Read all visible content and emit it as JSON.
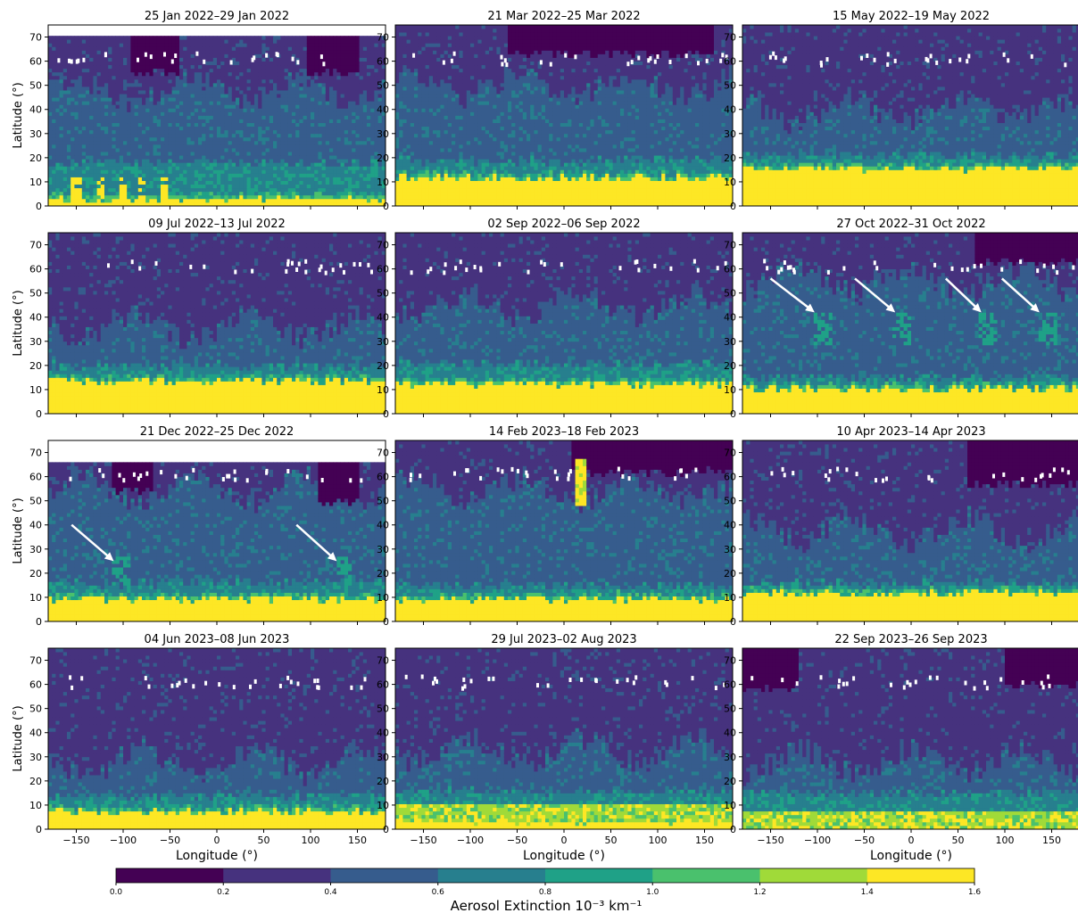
{
  "figure": {
    "colorbar_label": "Aerosol Extinction 10⁻³ km⁻¹",
    "x_label": "Longitude (°)",
    "y_label": "Latitude (°)"
  },
  "chart_data": [
    {
      "type": "heatmap",
      "title": "25 Jan 2022–29 Jan 2022",
      "xlim": [
        -180,
        180
      ],
      "ylim": [
        0,
        75
      ],
      "yticks": [
        0,
        10,
        20,
        30,
        40,
        50,
        60,
        70
      ],
      "data_top": 70,
      "features": {
        "yellow_base": [
          2,
          4
        ],
        "teal_top": 18,
        "mid_top": 48,
        "dark_patches": [
          {
            "x0": -90,
            "x1": -40,
            "y0": 55
          },
          {
            "x0": 95,
            "x1": 150,
            "y0": 55
          }
        ],
        "tropical_plumes": [
          -150,
          -125,
          -100,
          -80,
          -55
        ]
      }
    },
    {
      "type": "heatmap",
      "title": "21 Mar 2022–25 Mar 2022",
      "xlim": [
        -180,
        180
      ],
      "ylim": [
        0,
        75
      ],
      "yticks": [
        0,
        10,
        20,
        30,
        40,
        50,
        60,
        70
      ],
      "data_top": 75,
      "features": {
        "yellow_base": [
          10,
          13
        ],
        "teal_top": 19,
        "mid_top": 50,
        "dark_patches": [
          {
            "x0": -60,
            "x1": 160,
            "y0": 63
          }
        ]
      }
    },
    {
      "type": "heatmap",
      "title": "15 May 2022–19 May 2022",
      "xlim": [
        -180,
        180
      ],
      "ylim": [
        0,
        75
      ],
      "yticks": [
        0,
        10,
        20,
        30,
        40,
        50,
        60,
        70
      ],
      "data_top": 75,
      "features": {
        "yellow_base": [
          14,
          17
        ],
        "teal_top": 21,
        "mid_top": 40,
        "dark_patches": []
      }
    },
    {
      "type": "heatmap",
      "title": "09 Jul 2022–13 Jul 2022",
      "xlim": [
        -180,
        180
      ],
      "ylim": [
        0,
        75
      ],
      "yticks": [
        0,
        10,
        20,
        30,
        40,
        50,
        60,
        70
      ],
      "data_top": 75,
      "features": {
        "yellow_base": [
          12,
          15
        ],
        "teal_top": 20,
        "mid_top": 36,
        "dark_patches": []
      }
    },
    {
      "type": "heatmap",
      "title": "02 Sep 2022–06 Sep 2022",
      "xlim": [
        -180,
        180
      ],
      "ylim": [
        0,
        75
      ],
      "yticks": [
        0,
        10,
        20,
        30,
        40,
        50,
        60,
        70
      ],
      "data_top": 75,
      "features": {
        "yellow_base": [
          11,
          14
        ],
        "teal_top": 21,
        "mid_top": 45,
        "dark_patches": []
      }
    },
    {
      "type": "heatmap",
      "title": "27 Oct 2022–31 Oct 2022",
      "xlim": [
        -180,
        180
      ],
      "ylim": [
        0,
        75
      ],
      "yticks": [
        0,
        10,
        20,
        30,
        40,
        50,
        60,
        70
      ],
      "data_top": 75,
      "features": {
        "yellow_base": [
          9,
          12
        ],
        "teal_top": 15,
        "mid_top": 55,
        "dark_patches": [
          {
            "x0": 70,
            "x1": 180,
            "y0": 63
          }
        ],
        "annotated_arrows": [
          {
            "from": [
              -150,
              56
            ],
            "to": [
              -103,
              42
            ]
          },
          {
            "from": [
              -60,
              56
            ],
            "to": [
              -17,
              42
            ]
          },
          {
            "from": [
              37,
              56
            ],
            "to": [
              75,
              42
            ]
          },
          {
            "from": [
              97,
              56
            ],
            "to": [
              137,
              42
            ]
          }
        ]
      }
    },
    {
      "type": "heatmap",
      "title": "21 Dec 2022–25 Dec 2022",
      "xlim": [
        -180,
        180
      ],
      "ylim": [
        0,
        75
      ],
      "yticks": [
        0,
        10,
        20,
        30,
        40,
        50,
        60,
        70
      ],
      "data_top": 66,
      "features": {
        "yellow_base": [
          8,
          11
        ],
        "teal_top": 16,
        "mid_top": 55,
        "dark_patches": [
          {
            "x0": -110,
            "x1": -70,
            "y0": 55
          },
          {
            "x0": 110,
            "x1": 150,
            "y0": 50
          }
        ],
        "annotated_arrows": [
          {
            "from": [
              -155,
              40
            ],
            "to": [
              -110,
              25
            ]
          },
          {
            "from": [
              85,
              40
            ],
            "to": [
              128,
              25
            ]
          }
        ]
      }
    },
    {
      "type": "heatmap",
      "title": "14 Feb 2023–18 Feb 2023",
      "xlim": [
        -180,
        180
      ],
      "ylim": [
        0,
        75
      ],
      "yticks": [
        0,
        10,
        20,
        30,
        40,
        50,
        60,
        70
      ],
      "data_top": 75,
      "features": {
        "yellow_base": [
          8,
          11
        ],
        "teal_top": 15,
        "mid_top": 55,
        "dark_patches": [
          {
            "x0": 10,
            "x1": 180,
            "y0": 62
          }
        ],
        "plume": {
          "x": 18,
          "y0": 48,
          "y1": 68
        }
      }
    },
    {
      "type": "heatmap",
      "title": "10 Apr 2023–14 Apr 2023",
      "xlim": [
        -180,
        180
      ],
      "ylim": [
        0,
        75
      ],
      "yticks": [
        0,
        10,
        20,
        30,
        40,
        50,
        60,
        70
      ],
      "data_top": 75,
      "features": {
        "yellow_base": [
          10,
          13
        ],
        "teal_top": 16,
        "mid_top": 38,
        "dark_patches": [
          {
            "x0": 60,
            "x1": 180,
            "y0": 57
          }
        ]
      }
    },
    {
      "type": "heatmap",
      "title": "04 Jun 2023–08 Jun 2023",
      "xlim": [
        -180,
        180
      ],
      "ylim": [
        0,
        75
      ],
      "yticks": [
        0,
        10,
        20,
        30,
        40,
        50,
        60,
        70
      ],
      "data_top": 75,
      "features": {
        "yellow_base": [
          6,
          9
        ],
        "teal_top": 14,
        "mid_top": 28,
        "dark_patches": []
      }
    },
    {
      "type": "heatmap",
      "title": "29 Jul 2023–02 Aug 2023",
      "xlim": [
        -180,
        180
      ],
      "ylim": [
        0,
        75
      ],
      "yticks": [
        0,
        10,
        20,
        30,
        40,
        50,
        60,
        70
      ],
      "data_top": 75,
      "features": {
        "yellow_base": [
          2,
          4
        ],
        "lime_top": 11,
        "teal_top": 16,
        "mid_top": 33,
        "dark_patches": []
      }
    },
    {
      "type": "heatmap",
      "title": "22 Sep 2023–26 Sep 2023",
      "xlim": [
        -180,
        180
      ],
      "ylim": [
        0,
        75
      ],
      "yticks": [
        0,
        10,
        20,
        30,
        40,
        50,
        60,
        70
      ],
      "data_top": 75,
      "features": {
        "yellow_base": [
          0,
          1
        ],
        "lime_top": 7,
        "teal_top": 15,
        "mid_top": 28,
        "dark_patches": [
          {
            "x0": -180,
            "x1": -120,
            "y0": 58
          },
          {
            "x0": 100,
            "x1": 180,
            "y0": 60
          }
        ]
      }
    }
  ],
  "colorbar": {
    "ticks": [
      "0.0",
      "0.2",
      "0.4",
      "0.6",
      "0.8",
      "1.0",
      "1.2",
      "1.4",
      "1.6"
    ],
    "colors": [
      "#440154",
      "#46327e",
      "#365c8d",
      "#277f8e",
      "#1fa187",
      "#4ac16d",
      "#a0da39",
      "#fde725"
    ]
  },
  "xticks": [
    -150,
    -100,
    -50,
    0,
    50,
    100,
    150
  ],
  "xtick_labels": [
    "−150",
    "−100",
    "−50",
    "0",
    "50",
    "100",
    "150"
  ],
  "ytick_labels": [
    "0",
    "10",
    "20",
    "30",
    "40",
    "50",
    "60",
    "70"
  ]
}
